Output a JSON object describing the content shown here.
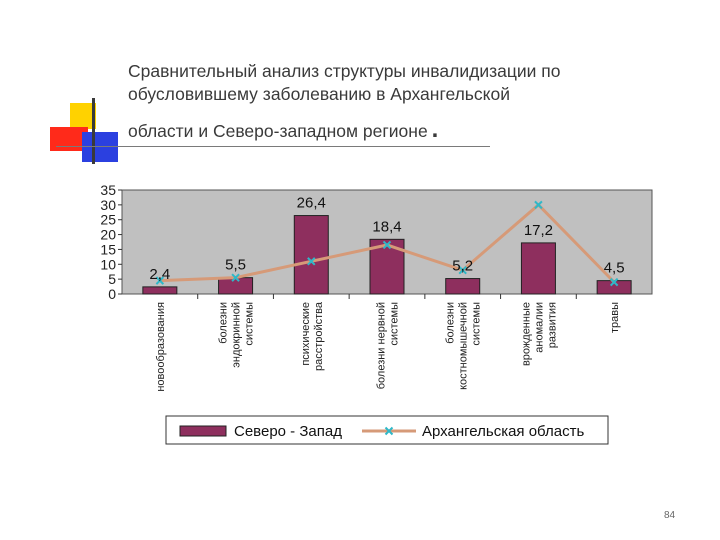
{
  "slide": {
    "title_line1": "Сравнительный анализ структуры инвалидизации по",
    "title_line2": "обусловившему заболеванию в  Архангельской",
    "title_line3": "области и Северо-западном регионе",
    "title_dot": ".",
    "page_number": "84"
  },
  "chart_data": {
    "type": "bar",
    "categories": [
      [
        "новообразования"
      ],
      [
        "болезни",
        "эндокринной",
        "системы"
      ],
      [
        "психические",
        "расстройства"
      ],
      [
        "болезни нервной",
        "системы"
      ],
      [
        "болезни",
        "костномышечной",
        "системы"
      ],
      [
        "врожденные",
        "аномалии",
        "развития"
      ],
      [
        "травы"
      ]
    ],
    "series": [
      {
        "name": "Северо - Запад",
        "type": "bar",
        "color": "#8e2f5e",
        "values": [
          2.4,
          5.5,
          26.4,
          18.4,
          5.2,
          17.2,
          4.5
        ]
      },
      {
        "name": "Архангельская область",
        "type": "line",
        "color": "#d69a78",
        "marker_color": "#2fb8c8",
        "values": [
          4.5,
          5.5,
          11,
          16.5,
          8,
          30,
          4
        ]
      }
    ],
    "data_labels": [
      "2,4",
      "5,5",
      "26,4",
      "18,4",
      "5,2",
      "17,2",
      "4,5"
    ],
    "y_ticks": [
      "0",
      "5",
      "10",
      "15",
      "20",
      "25",
      "30",
      "35"
    ],
    "ylim": [
      0,
      35
    ],
    "plot_background": "#c0c0c0",
    "legend_position": "bottom"
  }
}
